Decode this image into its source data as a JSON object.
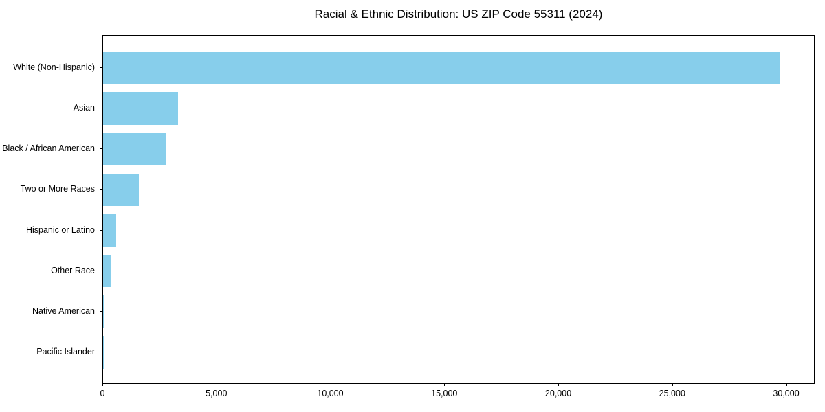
{
  "chart_data": {
    "type": "bar",
    "orientation": "horizontal",
    "title": "Racial & Ethnic Distribution: US ZIP Code 55311 (2024)",
    "categories": [
      "White (Non-Hispanic)",
      "Asian",
      "Black / African American",
      "Two or More Races",
      "Hispanic or Latino",
      "Other Race",
      "Native American",
      "Pacific Islander"
    ],
    "values": [
      29750,
      3290,
      2780,
      1570,
      575,
      345,
      25,
      10
    ],
    "xlabel": "",
    "ylabel": "",
    "xlim": [
      0,
      31250
    ],
    "x_ticks": [
      0,
      5000,
      10000,
      15000,
      20000,
      25000,
      30000
    ],
    "x_tick_labels": [
      "0",
      "5,000",
      "10,000",
      "15,000",
      "20,000",
      "25,000",
      "30,000"
    ],
    "bar_color": "#87CEEB",
    "axis_color": "#000000",
    "grid": false,
    "legend_position": "none"
  }
}
